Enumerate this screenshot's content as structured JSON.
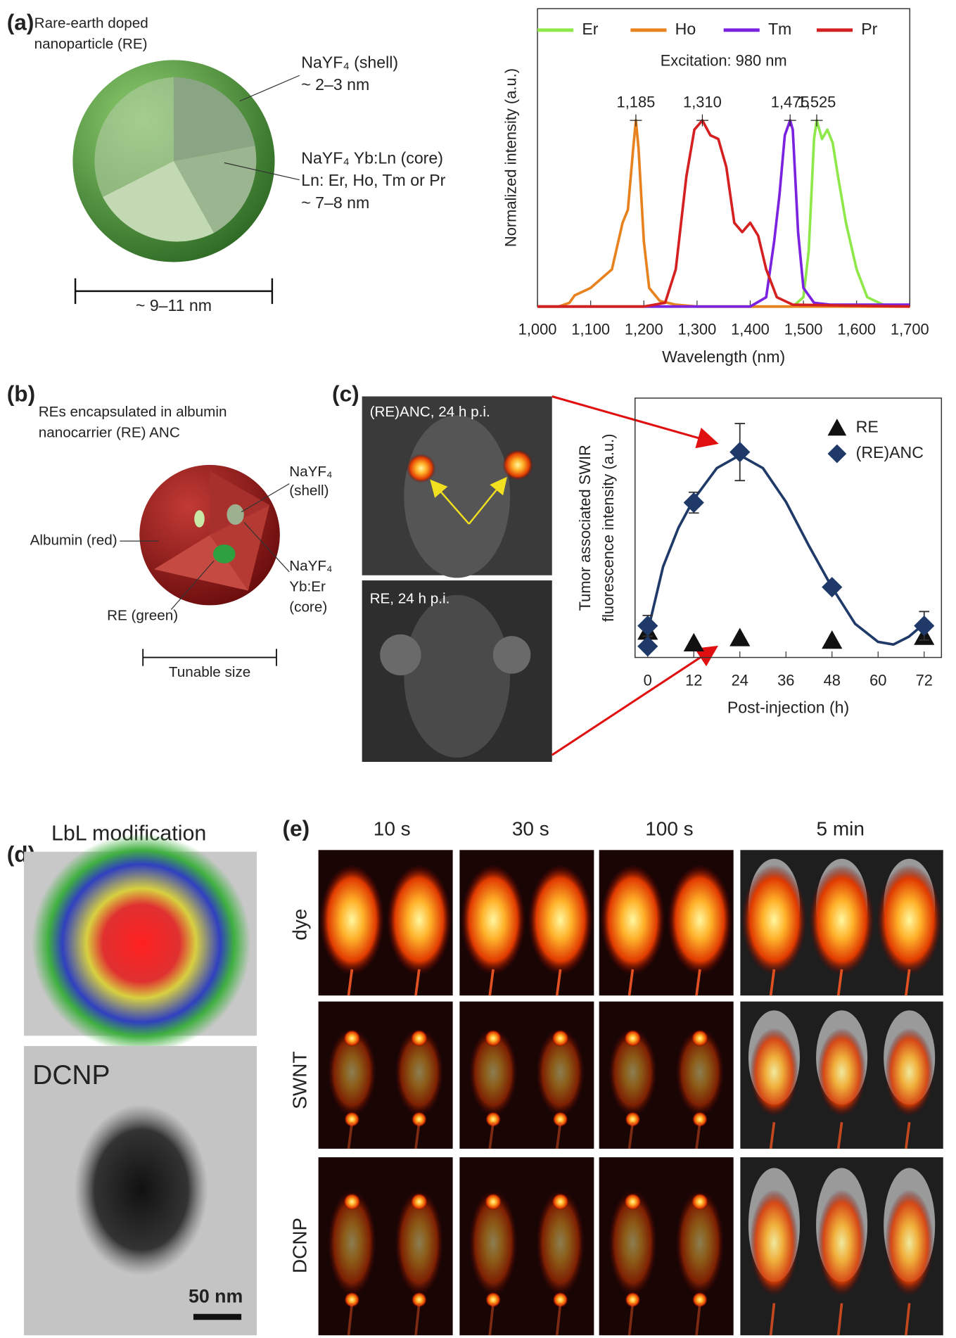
{
  "panel_a": {
    "label": "(a)",
    "title_lines": [
      "Rare-earth doped",
      "nanoparticle (RE)"
    ],
    "shell": [
      "NaYF₄ (shell)",
      "~ 2–3 nm"
    ],
    "core": [
      "NaYF₄ Yb:Ln (core)",
      "Ln: Er, Ho, Tm or Pr",
      "~ 7–8 nm"
    ],
    "size": "~ 9–11 nm"
  },
  "panel_b": {
    "label": "(b)",
    "title_lines": [
      "REs encapsulated in albumin",
      "nanocarrier (RE) ANC"
    ],
    "shell": [
      "NaYF₄",
      "(shell)"
    ],
    "albumin": "Albumin (red)",
    "core": [
      "NaYF₄",
      "Yb:Er",
      "(core)"
    ],
    "re": "RE (green)",
    "size": "Tunable size"
  },
  "panel_c": {
    "label": "(c)",
    "images": [
      "(RE)ANC, 24 h p.i.",
      "RE, 24 h p.i."
    ]
  },
  "panel_d": {
    "label": "(d)",
    "title": "LbL modification",
    "tem_label": "DCNP",
    "scale_bar": "50 nm"
  },
  "panel_e": {
    "label": "(e)",
    "columns": [
      "10 s",
      "30 s",
      "100 s",
      "5 min"
    ],
    "rows": [
      "dye",
      "SWNT",
      "DCNP"
    ]
  },
  "chart_data": [
    {
      "type": "line",
      "subtitle": "Excitation: 980 nm",
      "xlabel": "Wavelength (nm)",
      "ylabel": "Normalized intensity (a.u.)",
      "xlim": [
        1000,
        1700
      ],
      "xticks": [
        {
          "value": 1000,
          "label": "1,000"
        },
        {
          "value": 1100,
          "label": "1,100"
        },
        {
          "value": 1200,
          "label": "1,200"
        },
        {
          "value": 1300,
          "label": "1,300"
        },
        {
          "value": 1400,
          "label": "1,400"
        },
        {
          "value": 1500,
          "label": "1,500"
        },
        {
          "value": 1600,
          "label": "1,600"
        },
        {
          "value": 1700,
          "label": "1,700"
        }
      ],
      "ylim": [
        0,
        1.6
      ],
      "legend": "top",
      "series": [
        {
          "name": "Er",
          "color": "#8fe84a",
          "x": [
            1000,
            1480,
            1500,
            1510,
            1520,
            1525,
            1535,
            1545,
            1555,
            1565,
            1580,
            1600,
            1620,
            1650,
            1700
          ],
          "values": [
            0,
            0,
            0.05,
            0.3,
            0.9,
            1.0,
            0.9,
            0.95,
            0.88,
            0.7,
            0.45,
            0.2,
            0.05,
            0.01,
            0
          ]
        },
        {
          "name": "Ho",
          "color": "#e8821e",
          "x": [
            1000,
            1040,
            1060,
            1070,
            1100,
            1140,
            1160,
            1170,
            1180,
            1185,
            1190,
            1200,
            1210,
            1230,
            1260,
            1300,
            1700
          ],
          "values": [
            0,
            0,
            0.02,
            0.06,
            0.1,
            0.2,
            0.45,
            0.52,
            0.85,
            1.0,
            0.85,
            0.35,
            0.1,
            0.03,
            0.01,
            0,
            0
          ]
        },
        {
          "name": "Tm",
          "color": "#7b22e0",
          "x": [
            1000,
            1400,
            1430,
            1445,
            1455,
            1465,
            1475,
            1480,
            1490,
            1500,
            1520,
            1550,
            1600,
            1700
          ],
          "values": [
            0,
            0,
            0.05,
            0.35,
            0.6,
            0.92,
            1.0,
            0.95,
            0.4,
            0.1,
            0.02,
            0.01,
            0.01,
            0.01
          ]
        },
        {
          "name": "Pr",
          "color": "#d42020",
          "x": [
            1000,
            1200,
            1240,
            1260,
            1280,
            1295,
            1310,
            1325,
            1340,
            1355,
            1370,
            1385,
            1400,
            1415,
            1430,
            1450,
            1480,
            1700
          ],
          "values": [
            0,
            0,
            0.02,
            0.2,
            0.7,
            0.95,
            1.0,
            0.92,
            0.9,
            0.75,
            0.45,
            0.4,
            0.45,
            0.38,
            0.2,
            0.05,
            0.01,
            0
          ]
        }
      ],
      "annotations": [
        {
          "value": 1185,
          "label": "1,185"
        },
        {
          "value": 1310,
          "label": "1,310"
        },
        {
          "value": 1475,
          "label": "1,475"
        },
        {
          "value": 1525,
          "label": "1,525"
        }
      ]
    },
    {
      "type": "scatter",
      "xlabel": "Post-injection (h)",
      "ylabel": [
        "Tumor associated SWIR",
        "fluorescence intensity (a.u.)"
      ],
      "xlim": [
        -3.3,
        76.5
      ],
      "xticks": [
        0,
        12,
        24,
        36,
        48,
        60,
        72
      ],
      "ylim": [
        0,
        10
      ],
      "legend": "upper right",
      "series": [
        {
          "name": "RE",
          "color": "#111111",
          "marker": "triangle",
          "x": [
            0,
            12,
            24,
            48,
            72
          ],
          "values": [
            1.0,
            0.55,
            0.75,
            0.65,
            0.8
          ]
        },
        {
          "name": "(RE)ANC",
          "color": "#1f3a68",
          "marker": "diamond",
          "x": [
            0,
            0,
            12,
            24,
            48,
            72
          ],
          "values": [
            1.22,
            0.43,
            5.97,
            7.92,
            2.71,
            1.22
          ],
          "errors": [
            0.4,
            0,
            0.4,
            1.1,
            0,
            0.55
          ]
        }
      ],
      "fit": {
        "color": "#1f3a68",
        "x": [
          0,
          4,
          8,
          12,
          18,
          24,
          30,
          36,
          42,
          48,
          54,
          60,
          64,
          68,
          72
        ],
        "values": [
          1.0,
          3.5,
          5.0,
          6.1,
          7.3,
          7.8,
          7.3,
          6.0,
          4.3,
          2.7,
          1.3,
          0.6,
          0.5,
          0.8,
          1.3
        ]
      }
    }
  ]
}
